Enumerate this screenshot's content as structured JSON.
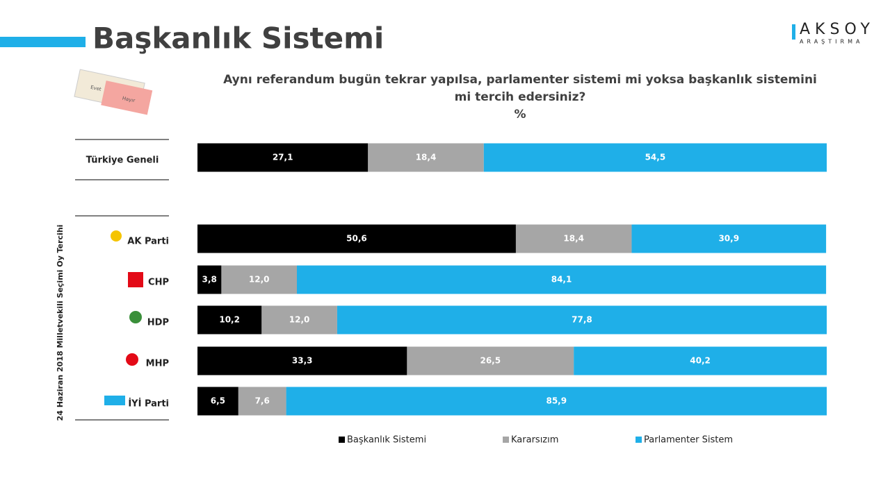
{
  "logo": {
    "name": "AKSOY",
    "sub": "ARAŞTIRMA"
  },
  "ballot": {
    "yes": "Evet",
    "no": "Hayır"
  },
  "chart_data": {
    "type": "bar",
    "orientation": "horizontal",
    "stacked": true,
    "title": "Başkanlık Sistemi",
    "subtitle": "Aynı referandum bugün tekrar yapılsa, parlamenter sistemi mi yoksa başkanlık sistemini mi tercih edersiniz?",
    "unit": "%",
    "side_label": "24 Haziran 2018 Milletvekili Seçimi Oy Tercihi",
    "categories": [
      "Türkiye Geneli",
      "AK Parti",
      "CHP",
      "HDP",
      "MHP",
      "İYİ Parti"
    ],
    "xlim": [
      0,
      100
    ],
    "legend": "bottom",
    "series": [
      {
        "name": "Başkanlık Sistemi",
        "color": "#000000",
        "values": [
          27.1,
          50.6,
          3.8,
          10.2,
          33.3,
          6.5
        ],
        "value_labels": [
          "27,1",
          "50,6",
          "3,8",
          "10,2",
          "33,3",
          "6,5"
        ]
      },
      {
        "name": "Kararsızım",
        "color": "#a6a6a6",
        "values": [
          18.4,
          18.4,
          12.0,
          12.0,
          26.5,
          7.6
        ],
        "value_labels": [
          "18,4",
          "18,4",
          "12,0",
          "12,0",
          "26,5",
          "7,6"
        ]
      },
      {
        "name": "Parlamenter Sistem",
        "color": "#1fafe8",
        "values": [
          54.5,
          30.9,
          84.1,
          77.8,
          40.2,
          85.9
        ],
        "value_labels": [
          "54,5",
          "30,9",
          "84,1",
          "77,8",
          "40,2",
          "85,9"
        ]
      }
    ]
  }
}
